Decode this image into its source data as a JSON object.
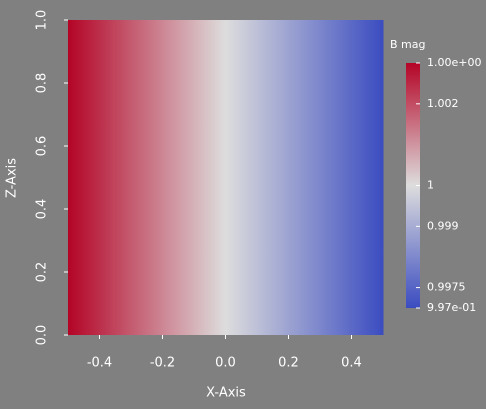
{
  "chart_data": {
    "type": "heatmap",
    "xlabel": "X-Axis",
    "ylabel": "Z-Axis",
    "x": [
      -0.5,
      -0.4,
      -0.3,
      -0.2,
      -0.1,
      0,
      0.1,
      0.2,
      0.3,
      0.4,
      0.5
    ],
    "values": [
      1.003,
      1.0024,
      1.0018,
      1.0012,
      1.0006,
      1.0,
      0.9994,
      0.9988,
      0.9982,
      0.9976,
      0.997
    ],
    "xlim": [
      -0.5,
      0.5
    ],
    "ylim": [
      0,
      1
    ],
    "xticks": [
      -0.4,
      -0.2,
      {
        "value": 0,
        "label": "0.0"
      },
      0.2,
      0.4
    ],
    "yticks": [
      {
        "value": 0,
        "label": "0.0"
      },
      0.2,
      0.4,
      0.6,
      0.8,
      {
        "value": 1,
        "label": "1.0"
      }
    ],
    "colormap": [
      "#3b4cc0",
      "#dddddd",
      "#b40426"
    ],
    "colorbar": {
      "title": "B mag",
      "clim": [
        0.997,
        1.003
      ],
      "ticks": [
        {
          "value": 1.003,
          "label": "1.00e+00"
        },
        1.002,
        1,
        0.999,
        0.9975,
        {
          "value": 0.997,
          "label": "9.97e-01"
        }
      ]
    }
  }
}
